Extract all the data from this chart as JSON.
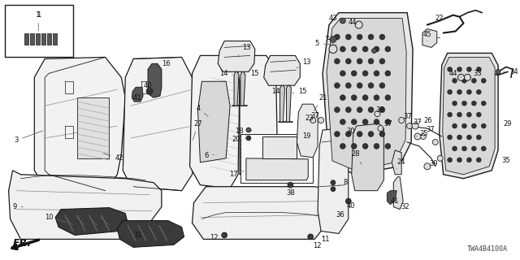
{
  "bg_color": "#ffffff",
  "line_color": "#1a1a1a",
  "part_number": "TWA4B4100A",
  "label_fontsize": 6.0,
  "figsize": [
    6.4,
    3.2
  ],
  "dpi": 100
}
